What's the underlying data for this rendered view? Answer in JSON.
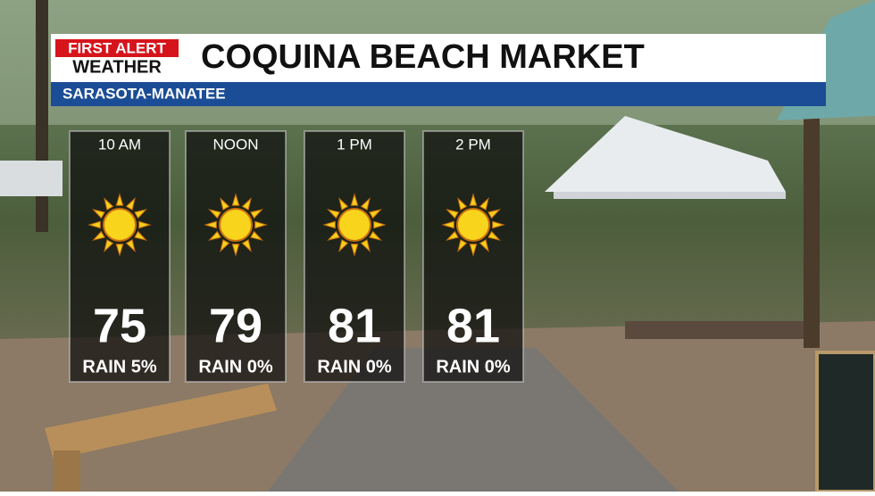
{
  "header": {
    "logo_top": "FIRST ALERT",
    "logo_bottom": "WEATHER",
    "title": "COQUINA BEACH MARKET",
    "subtitle": "SARASOTA-MANATEE"
  },
  "forecast": [
    {
      "time": "10 AM",
      "temp": 75,
      "rain": "RAIN 5%"
    },
    {
      "time": "NOON",
      "temp": 79,
      "rain": "RAIN 0%"
    },
    {
      "time": "1 PM",
      "temp": 81,
      "rain": "RAIN 0%"
    },
    {
      "time": "2 PM",
      "temp": 81,
      "rain": "RAIN 0%"
    }
  ]
}
